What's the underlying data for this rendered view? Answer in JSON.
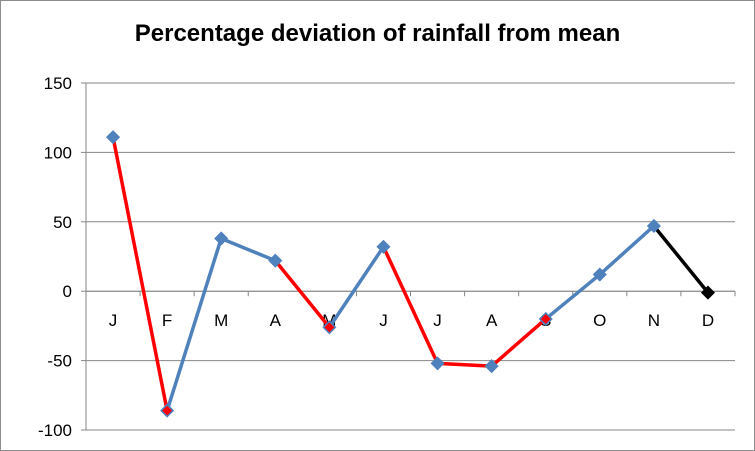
{
  "chart_data": {
    "type": "line",
    "title": "Percentage deviation of rainfall from mean",
    "categories": [
      "J",
      "F",
      "M",
      "A",
      "M",
      "J",
      "J",
      "A",
      "S",
      "O",
      "N",
      "D"
    ],
    "values": [
      111,
      -86,
      38,
      22,
      -26,
      32,
      -52,
      -54,
      -20,
      12,
      47,
      -1
    ],
    "ylim": [
      -100,
      150
    ],
    "yticks": [
      150,
      100,
      50,
      0,
      -50,
      -100
    ],
    "grid": true,
    "series_color": "#4f81bd",
    "highlight_color": "#ff0000",
    "last_segment_color": "#000000",
    "segment_colors": [
      "red",
      "blue",
      "blue",
      "red",
      "blue",
      "red",
      "red",
      "red",
      "blue",
      "blue",
      "black"
    ],
    "marker_colors": [
      "blue",
      "red",
      "blue",
      "blue",
      "red",
      "blue",
      "blue",
      "blue",
      "red",
      "blue",
      "blue",
      "black"
    ]
  }
}
